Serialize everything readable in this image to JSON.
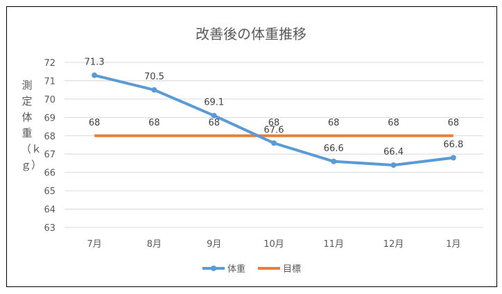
{
  "chart_data": {
    "type": "line",
    "title": "改善後の体重推移",
    "xlabel": "",
    "ylabel": "測定体重（ｋｇ）",
    "ylim": [
      63,
      72
    ],
    "yticks": [
      63,
      64,
      65,
      66,
      67,
      68,
      69,
      70,
      71,
      72
    ],
    "grid": true,
    "legend_position": "bottom",
    "categories": [
      "7月",
      "8月",
      "9月",
      "10月",
      "11月",
      "12月",
      "1月"
    ],
    "series": [
      {
        "name": "体重",
        "color": "#5B9BD5",
        "markers": true,
        "values": [
          71.3,
          70.5,
          69.1,
          67.6,
          66.6,
          66.4,
          66.8
        ]
      },
      {
        "name": "目標",
        "color": "#ED7D31",
        "markers": false,
        "values": [
          68,
          68,
          68,
          68,
          68,
          68,
          68
        ]
      }
    ]
  }
}
